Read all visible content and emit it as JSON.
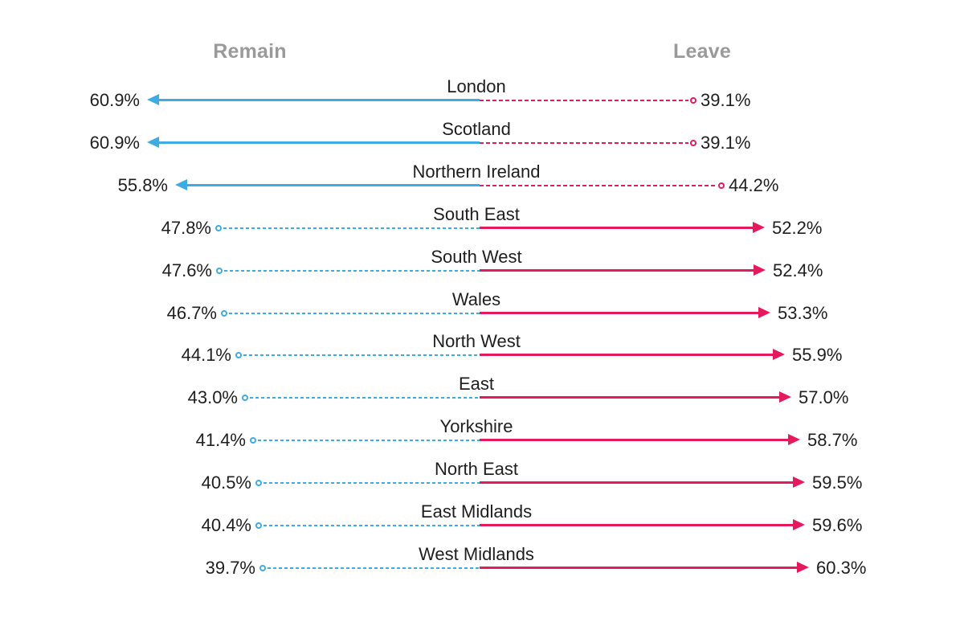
{
  "header": {
    "remain_label": "Remain",
    "leave_label": "Leave"
  },
  "colors": {
    "remain_blue": "#3EACE3",
    "leave_pink": "#E6195D",
    "header_gray": "#9A9A9A",
    "text": "#1E1E1E",
    "background": "#FFFFFF"
  },
  "chart_data": {
    "type": "diverging-arrow-bar",
    "title": "",
    "legend": {
      "left": "Remain",
      "right": "Leave",
      "position": "top"
    },
    "value_suffix": "%",
    "axis": {
      "center_value_split": true,
      "grid": false
    },
    "categories": [
      "London",
      "Scotland",
      "Northern Ireland",
      "South East",
      "South West",
      "Wales",
      "North West",
      "East",
      "Yorkshire",
      "North East",
      "East Midlands",
      "West Midlands"
    ],
    "series": [
      {
        "name": "Remain",
        "values": [
          60.9,
          60.9,
          55.8,
          47.8,
          47.6,
          46.7,
          44.1,
          43.0,
          41.4,
          40.5,
          40.4,
          39.7
        ]
      },
      {
        "name": "Leave",
        "values": [
          39.1,
          39.1,
          44.2,
          52.2,
          52.4,
          53.3,
          55.9,
          57.0,
          58.7,
          59.5,
          59.6,
          60.3
        ]
      }
    ],
    "style_note": "winning side drawn as solid arrow pointing outward; losing side drawn as dashed line ending in small open circle"
  }
}
